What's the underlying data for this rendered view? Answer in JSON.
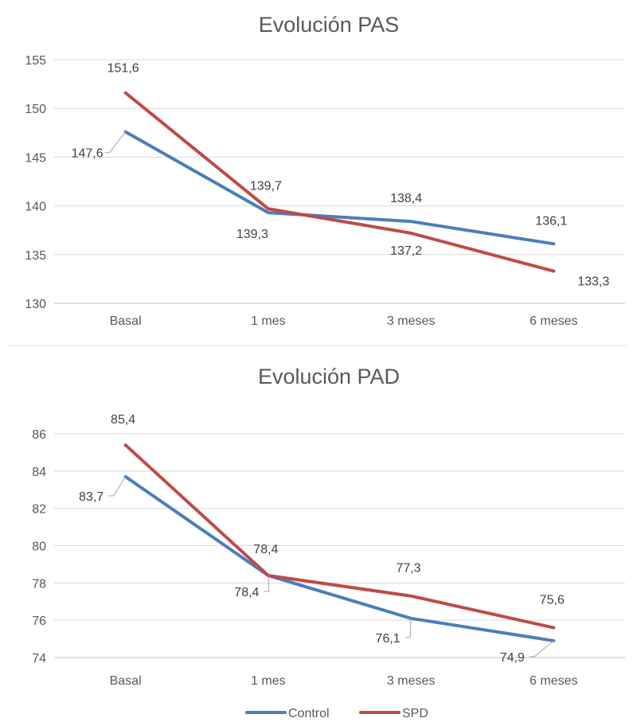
{
  "chart_data": [
    {
      "type": "line",
      "title": "Evolución PAS",
      "categories": [
        "Basal",
        "1 mes",
        "3 meses",
        "6 meses"
      ],
      "ylim": [
        130,
        155
      ],
      "yticks": [
        "130",
        "135",
        "140",
        "145",
        "150",
        "155"
      ],
      "grid": true,
      "series": [
        {
          "name": "Control",
          "color": "#4a7ebb",
          "values": [
            147.6,
            139.3,
            138.4,
            136.1
          ],
          "labels": [
            "147,6",
            "139,3",
            "138,4",
            "136,1"
          ]
        },
        {
          "name": "SPD",
          "color": "#be4b48",
          "values": [
            151.6,
            139.7,
            137.2,
            133.3
          ],
          "labels": [
            "151,6",
            "139,7",
            "137,2",
            "133,3"
          ]
        }
      ]
    },
    {
      "type": "line",
      "title": "Evolución PAD",
      "categories": [
        "Basal",
        "1 mes",
        "3 meses",
        "6 meses"
      ],
      "ylim": [
        74,
        86
      ],
      "yticks": [
        "74",
        "76",
        "78",
        "80",
        "82",
        "84",
        "86"
      ],
      "grid": true,
      "series": [
        {
          "name": "Control",
          "color": "#4a7ebb",
          "values": [
            83.7,
            78.4,
            76.1,
            74.9
          ],
          "labels": [
            "83,7",
            "78,4",
            "76,1",
            "74,9"
          ]
        },
        {
          "name": "SPD",
          "color": "#be4b48",
          "values": [
            85.4,
            78.4,
            77.3,
            75.6
          ],
          "labels": [
            "85,4",
            "78,4",
            "77,3",
            "75,6"
          ]
        }
      ]
    }
  ],
  "legend": {
    "position": "bottom",
    "items": [
      {
        "name": "Control",
        "color": "#4a7ebb"
      },
      {
        "name": "SPD",
        "color": "#be4b48"
      }
    ]
  }
}
